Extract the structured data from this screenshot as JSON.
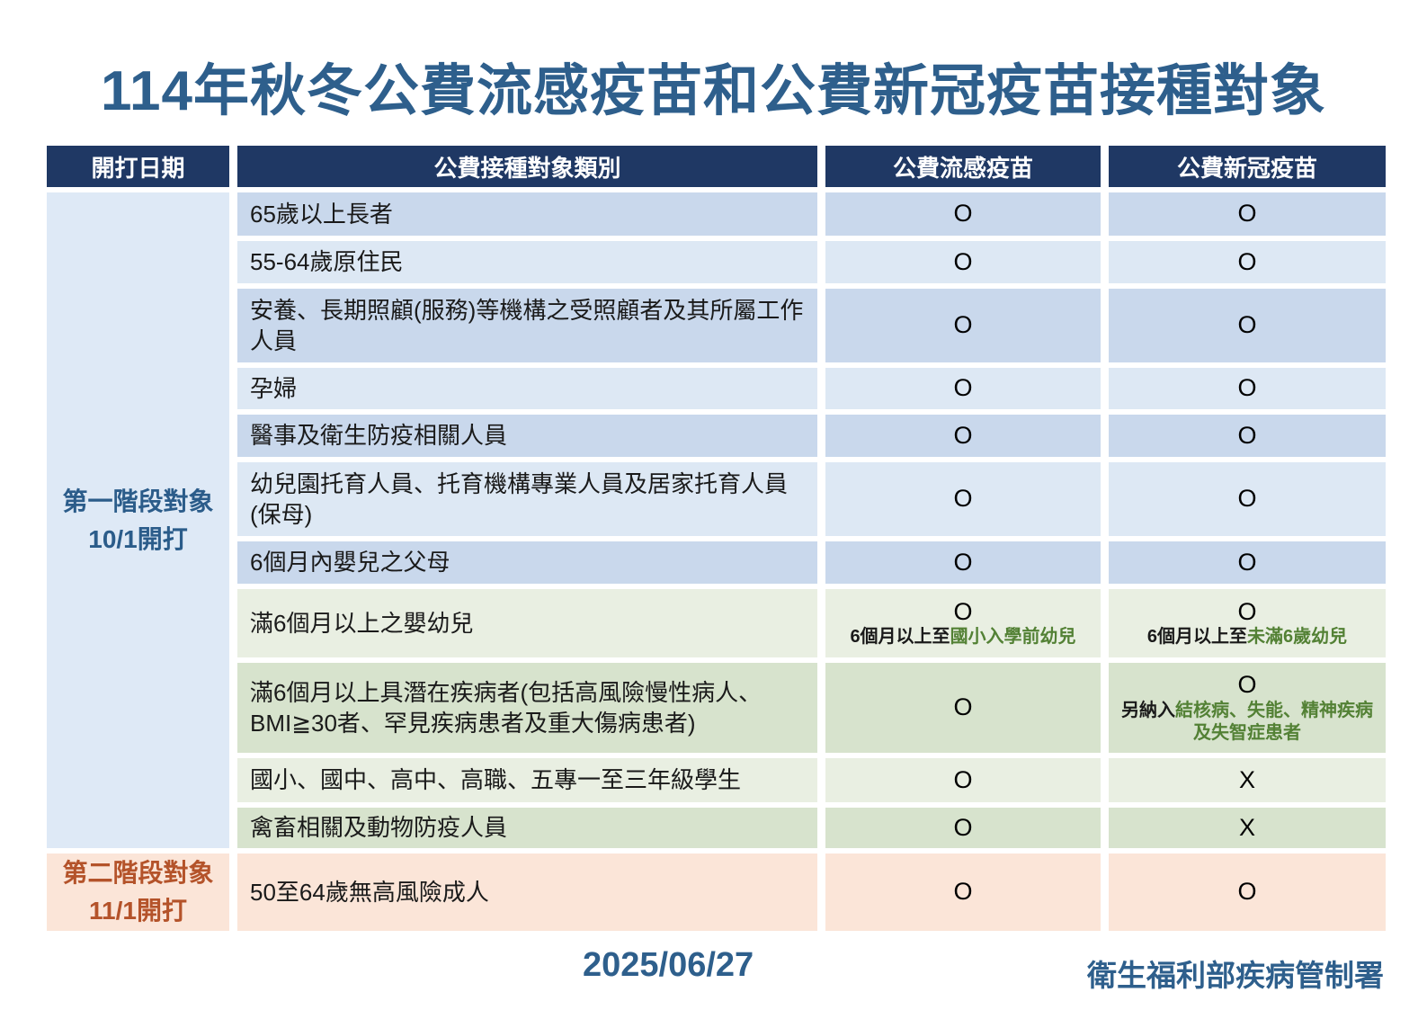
{
  "title": "114年秋冬公費流感疫苗和公費新冠疫苗接種對象",
  "colors": {
    "title_blue": "#2E5F8C",
    "header_navy": "#1F3864",
    "row_blue_dark": "#C9D8EC",
    "row_blue_light": "#DDE8F4",
    "row_green_light": "#E9EFE2",
    "row_green_dark": "#D7E3CD",
    "row_orange": "#FBE5D8",
    "stage1_bg": "#DEE9F6",
    "stage1_text": "#2B5C8A",
    "stage2_text": "#B4532A",
    "highlight_green": "#538135"
  },
  "table": {
    "headers": [
      "開打日期",
      "公費接種對象類別",
      "公費流感疫苗",
      "公費新冠疫苗"
    ],
    "stages": [
      {
        "line1": "第一階段對象",
        "line2": "10/1開打"
      },
      {
        "line1": "第二階段對象",
        "line2": "11/1開打"
      }
    ],
    "rows": [
      {
        "category": "65歲以上長者",
        "flu": {
          "mark": "O"
        },
        "covid": {
          "mark": "O"
        }
      },
      {
        "category": "55-64歲原住民",
        "flu": {
          "mark": "O"
        },
        "covid": {
          "mark": "O"
        }
      },
      {
        "category": "安養、長期照顧(服務)等機構之受照顧者及其所屬工作人員",
        "flu": {
          "mark": "O"
        },
        "covid": {
          "mark": "O"
        }
      },
      {
        "category": "孕婦",
        "flu": {
          "mark": "O"
        },
        "covid": {
          "mark": "O"
        }
      },
      {
        "category": "醫事及衛生防疫相關人員",
        "flu": {
          "mark": "O"
        },
        "covid": {
          "mark": "O"
        }
      },
      {
        "category": "幼兒園托育人員、托育機構專業人員及居家托育人員(保母)",
        "flu": {
          "mark": "O"
        },
        "covid": {
          "mark": "O"
        }
      },
      {
        "category": "6個月內嬰兒之父母",
        "flu": {
          "mark": "O"
        },
        "covid": {
          "mark": "O"
        }
      },
      {
        "category": "滿6個月以上之嬰幼兒",
        "flu": {
          "mark": "O",
          "note_prefix": "6個月以上至",
          "note_highlight": "國小入學前幼兒"
        },
        "covid": {
          "mark": "O",
          "note_prefix": "6個月以上至",
          "note_highlight": "未滿6歲幼兒"
        }
      },
      {
        "category": "滿6個月以上具潛在疾病者(包括高風險慢性病人、BMI≧30者、罕見疾病患者及重大傷病患者)",
        "flu": {
          "mark": "O"
        },
        "covid": {
          "mark": "O",
          "note_prefix": "另納入",
          "note_highlight": "結核病、失能、精神疾病及失智症患者"
        }
      },
      {
        "category": "國小、國中、高中、高職、五專一至三年級學生",
        "flu": {
          "mark": "O"
        },
        "covid": {
          "mark": "X"
        }
      },
      {
        "category": "禽畜相關及動物防疫人員",
        "flu": {
          "mark": "O"
        },
        "covid": {
          "mark": "X"
        }
      },
      {
        "category": "50至64歲無高風險成人",
        "flu": {
          "mark": "O"
        },
        "covid": {
          "mark": "O"
        }
      }
    ]
  },
  "footer": {
    "date": "2025/06/27",
    "agency": "衛生福利部疾病管制署"
  }
}
